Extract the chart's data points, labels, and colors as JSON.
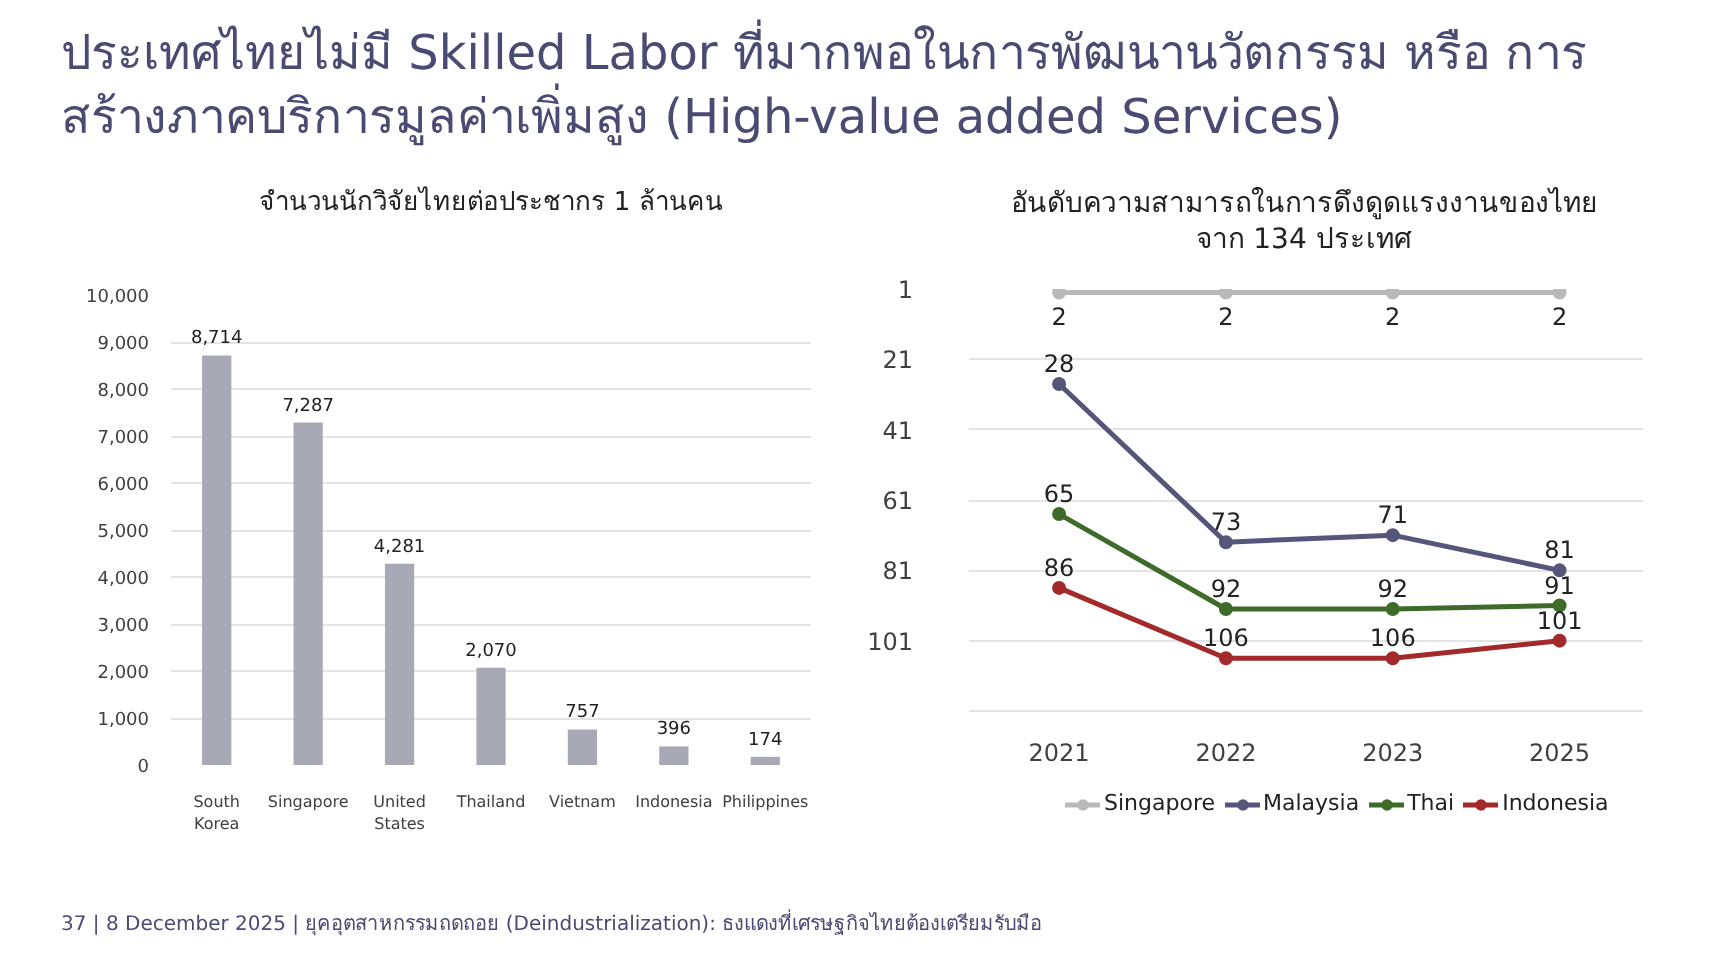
{
  "chart_data": [
    {
      "type": "bar",
      "title": "จำนวนนักวิจัยไทยต่อประชากร 1 ล้านคน",
      "categories": [
        "South Korea",
        "Singapore",
        "United States",
        "Thailand",
        "Vietnam",
        "Indonesia",
        "Philippines"
      ],
      "values": [
        8714,
        7287,
        4281,
        2070,
        757,
        396,
        174
      ],
      "value_labels": [
        "8,714",
        "7,287",
        "4,281",
        "2,070",
        "757",
        "396",
        "174"
      ],
      "color": "#a9a9b6",
      "ylim": [
        0,
        10000
      ],
      "yticks": [
        {
          "value": 0,
          "label": "0"
        },
        {
          "value": 1000,
          "label": "1,000"
        },
        {
          "value": 2000,
          "label": "2,000"
        },
        {
          "value": 3000,
          "label": "3,000"
        },
        {
          "value": 4000,
          "label": "4,000"
        },
        {
          "value": 5000,
          "label": "5,000"
        },
        {
          "value": 6000,
          "label": "6,000"
        },
        {
          "value": 7000,
          "label": "7,000"
        },
        {
          "value": 8000,
          "label": "8,000"
        },
        {
          "value": 9000,
          "label": "9,000"
        },
        {
          "value": 10000,
          "label": "10,000"
        }
      ],
      "grid": "y",
      "annotations": [
        "ประเทศไทยไม่มี Skilled Labor ที่มากพอในการพัฒนานวัตกรรม หรือ การ\nสร้างภาคบริการมูลค่าเพิ่มสูง (High-value added Services)",
        "37   |  8 December 2025 | ยุคอุตสาหกรรมถดถอย (Deindustrialization): ธงแดงที่เศรษฐกิจไทยต้องเตรียมรับมือ"
      ]
    },
    {
      "type": "line",
      "title": "อันดับความสามารถในการดึงดูดแรงงานของไทย\nจาก 134 ประเทศ",
      "categories": [
        "2021",
        "2022",
        "2023",
        "2025"
      ],
      "series": [
        {
          "name": "Singapore",
          "color": "#b9b9b9",
          "values": [
            2,
            2,
            2,
            2
          ]
        },
        {
          "name": "Malaysia",
          "color": "#56557a",
          "values": [
            28,
            73,
            71,
            81
          ]
        },
        {
          "name": "Thai",
          "color": "#3f6b2a",
          "values": [
            65,
            92,
            92,
            91
          ]
        },
        {
          "name": "Indonesia",
          "color": "#a32a2a",
          "values": [
            86,
            106,
            106,
            101
          ]
        }
      ],
      "ylim": [
        121,
        1
      ],
      "yticks": [
        1,
        21,
        41,
        61,
        81,
        101
      ],
      "grid": "y",
      "legend": "bottom",
      "marker": "circle",
      "line_style": "solid",
      "data_labels": true
    }
  ]
}
